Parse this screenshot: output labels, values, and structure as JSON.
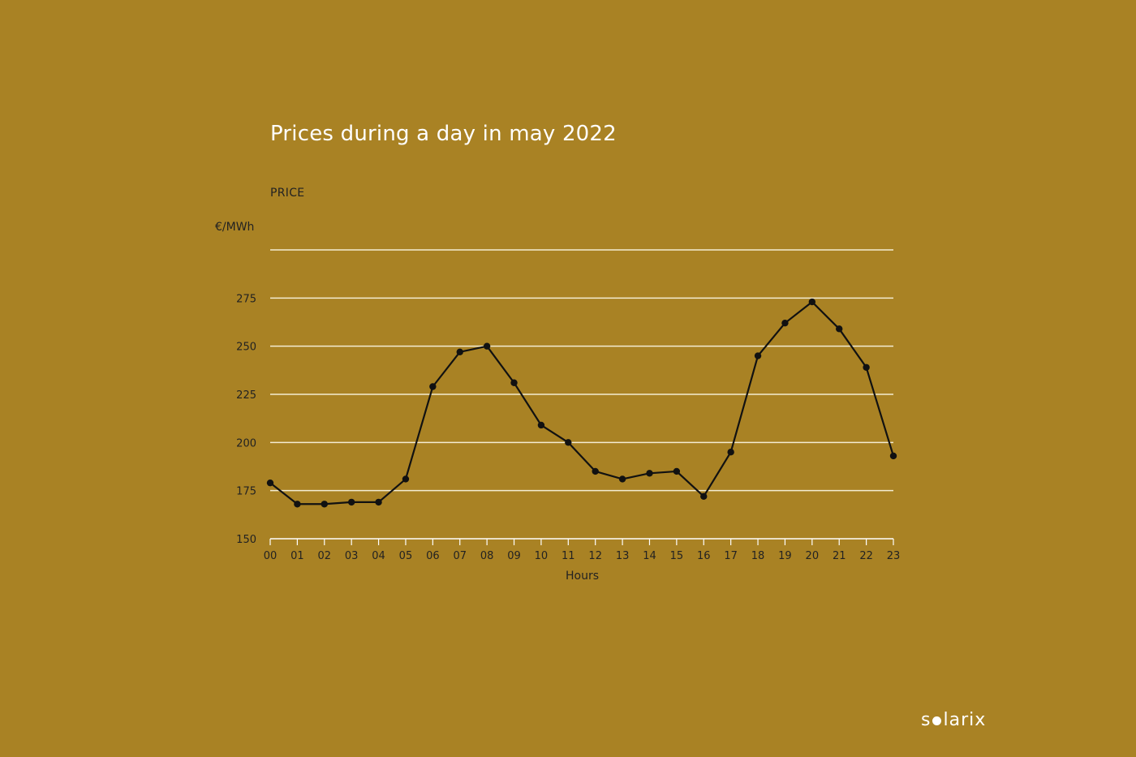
{
  "chart_data": {
    "type": "line",
    "title": "Prices during a day in may 2022",
    "ylabel": "PRICE",
    "yunit": "€/MWh",
    "xlabel": "Hours",
    "ylim": [
      150,
      300
    ],
    "yticks": [
      150,
      175,
      200,
      225,
      250,
      275
    ],
    "grid": true,
    "categories": [
      "00",
      "01",
      "02",
      "03",
      "04",
      "05",
      "06",
      "07",
      "08",
      "09",
      "10",
      "11",
      "12",
      "13",
      "14",
      "15",
      "16",
      "17",
      "18",
      "19",
      "20",
      "21",
      "22",
      "23"
    ],
    "values": [
      179,
      168,
      168,
      169,
      169,
      181,
      229,
      247,
      250,
      231,
      209,
      200,
      185,
      181,
      184,
      185,
      172,
      195,
      245,
      262,
      273,
      259,
      239,
      193
    ]
  },
  "logo": {
    "pre": "s",
    "post": "larix"
  }
}
